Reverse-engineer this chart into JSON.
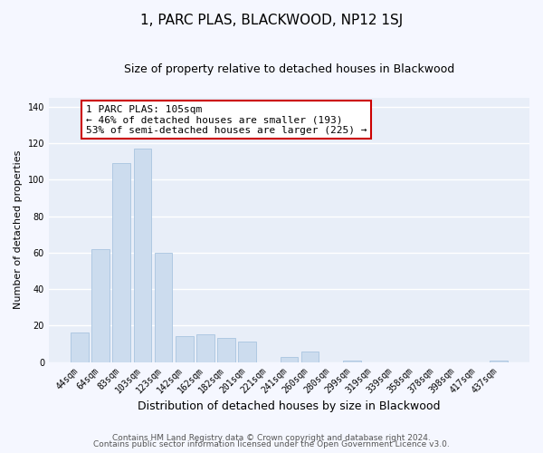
{
  "title": "1, PARC PLAS, BLACKWOOD, NP12 1SJ",
  "subtitle": "Size of property relative to detached houses in Blackwood",
  "xlabel": "Distribution of detached houses by size in Blackwood",
  "ylabel": "Number of detached properties",
  "bar_labels": [
    "44sqm",
    "64sqm",
    "83sqm",
    "103sqm",
    "123sqm",
    "142sqm",
    "162sqm",
    "182sqm",
    "201sqm",
    "221sqm",
    "241sqm",
    "260sqm",
    "280sqm",
    "299sqm",
    "319sqm",
    "339sqm",
    "358sqm",
    "378sqm",
    "398sqm",
    "417sqm",
    "437sqm"
  ],
  "bar_values": [
    16,
    62,
    109,
    117,
    60,
    14,
    15,
    13,
    11,
    0,
    3,
    6,
    0,
    1,
    0,
    0,
    0,
    0,
    0,
    0,
    1
  ],
  "bar_color": "#ccdcee",
  "bar_edge_color": "#a8c4e0",
  "annotation_title": "1 PARC PLAS: 105sqm",
  "annotation_line1": "← 46% of detached houses are smaller (193)",
  "annotation_line2": "53% of semi-detached houses are larger (225) →",
  "annotation_box_color": "#ffffff",
  "annotation_box_edge": "#cc0000",
  "ylim": [
    0,
    145
  ],
  "footer1": "Contains HM Land Registry data © Crown copyright and database right 2024.",
  "footer2": "Contains public sector information licensed under the Open Government Licence v3.0.",
  "background_color": "#f5f7ff",
  "plot_bg_color": "#e8eef8",
  "grid_color": "#ffffff",
  "title_fontsize": 11,
  "subtitle_fontsize": 9,
  "xlabel_fontsize": 9,
  "ylabel_fontsize": 8,
  "tick_fontsize": 7,
  "annotation_fontsize": 8,
  "footer_fontsize": 6.5
}
